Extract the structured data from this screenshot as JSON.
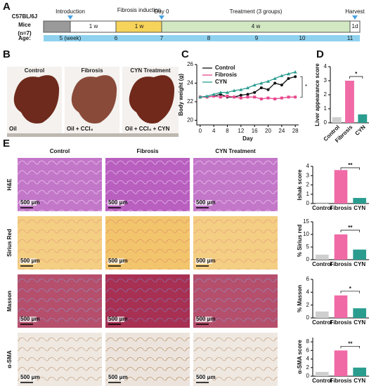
{
  "panel_a": {
    "letter": "A",
    "strain": "C57BL/6J",
    "mice": "Mice",
    "n": "(n=7)",
    "introduction": "Introduction",
    "fibrosis_induction": "Fibrosis induction",
    "day0": "Day 0",
    "treatment": "Treatment (3 groups)",
    "harvest": "Harvest",
    "durations": [
      "1 w",
      "1 w",
      "4 w",
      "1d"
    ],
    "age_label": "Age:",
    "ages": [
      "5 (week)",
      "6",
      "7",
      "8",
      "9",
      "10",
      "11"
    ]
  },
  "panel_b": {
    "letter": "B",
    "groups": [
      "Control",
      "Fibrosis",
      "CYN Treatment"
    ],
    "treatments": [
      "Oil",
      "Oil + CCl₄",
      "Oil + CCl₄ + CYN"
    ]
  },
  "panel_c": {
    "letter": "C"
  },
  "panel_d": {
    "letter": "D"
  },
  "panel_e": {
    "letter": "E",
    "groups": [
      "Control",
      "Fibrosis",
      "CYN Treatment"
    ],
    "stains": [
      "H&E",
      "Sirius Red",
      "Masson",
      "α-SMA"
    ],
    "scale_bar": "500 μm"
  },
  "chart_data": [
    {
      "type": "line",
      "x_label": "Day",
      "y_label": "Body weight (g)",
      "x": [
        0,
        2,
        4,
        6,
        8,
        10,
        12,
        14,
        16,
        18,
        20,
        22,
        24,
        26,
        28
      ],
      "series": [
        {
          "name": "Control",
          "color": "#111111",
          "marker": "circle",
          "values": [
            22.5,
            22.5,
            22.6,
            22.8,
            22.5,
            22.5,
            22.7,
            22.8,
            23.0,
            23.5,
            23.3,
            24.0,
            23.8,
            24.5,
            24.7
          ]
        },
        {
          "name": "Fibrosis",
          "color": "#e8468c",
          "marker": "square",
          "values": [
            22.5,
            22.5,
            22.6,
            22.5,
            22.6,
            22.5,
            22.4,
            22.5,
            22.5,
            22.3,
            22.4,
            22.3,
            22.4,
            22.5,
            22.5
          ]
        },
        {
          "name": "CYN",
          "color": "#2a9d8f",
          "marker": "triangle",
          "values": [
            22.5,
            22.6,
            22.8,
            23.0,
            23.0,
            23.2,
            23.3,
            23.5,
            23.8,
            24.0,
            24.2,
            24.5,
            24.8,
            25.0,
            25.2
          ]
        }
      ],
      "xlim": [
        -1,
        29
      ],
      "xticks": [
        0,
        4,
        8,
        12,
        16,
        20,
        24,
        28
      ],
      "ylim": [
        19.5,
        26
      ],
      "yticks": [
        20,
        22,
        24,
        26
      ],
      "annotation": "*",
      "legend": "upper left"
    },
    {
      "type": "bar",
      "y_label": "Liver appearance score",
      "categories": [
        "Control",
        "Fibrosis",
        "CYN"
      ],
      "values": [
        0.4,
        3.0,
        0.6
      ],
      "colors": [
        "#cfcfcf",
        "#f06aa6",
        "#2a9d8f"
      ],
      "ylim": [
        0,
        4
      ],
      "yticks": [
        0,
        1,
        2,
        3,
        4
      ],
      "annotation": "*",
      "rotate_labels": true
    },
    {
      "type": "bar",
      "y_label": "Ishak score",
      "categories": [
        "Control",
        "Fibrosis",
        "CYN"
      ],
      "values": [
        0,
        3.6,
        0.6
      ],
      "colors": [
        "#cfcfcf",
        "#f06aa6",
        "#2a9d8f"
      ],
      "ylim": [
        0,
        4
      ],
      "yticks": [
        0,
        1,
        2,
        3,
        4
      ],
      "annotation": "**"
    },
    {
      "type": "bar",
      "y_label": "% Sirius red",
      "categories": [
        "Control",
        "Fibrosis",
        "CYN"
      ],
      "values": [
        2,
        10,
        4
      ],
      "colors": [
        "#cfcfcf",
        "#f06aa6",
        "#2a9d8f"
      ],
      "ylim": [
        0,
        15
      ],
      "yticks": [
        0,
        5,
        10,
        15
      ],
      "annotation": "**"
    },
    {
      "type": "bar",
      "y_label": "% Masson",
      "categories": [
        "Control",
        "Fibrosis",
        "CYN"
      ],
      "values": [
        1,
        3.5,
        1.5
      ],
      "colors": [
        "#cfcfcf",
        "#f06aa6",
        "#2a9d8f"
      ],
      "ylim": [
        0,
        6
      ],
      "yticks": [
        0,
        2,
        4,
        6
      ],
      "annotation": "*"
    },
    {
      "type": "bar",
      "y_label": "α-SMA score",
      "categories": [
        "Control",
        "Fibrosis",
        "CYN"
      ],
      "values": [
        1,
        6,
        2
      ],
      "colors": [
        "#cfcfcf",
        "#f06aa6",
        "#2a9d8f"
      ],
      "ylim": [
        0,
        9
      ],
      "yticks": [
        0,
        2,
        4,
        6,
        8
      ],
      "annotation": "**"
    }
  ]
}
